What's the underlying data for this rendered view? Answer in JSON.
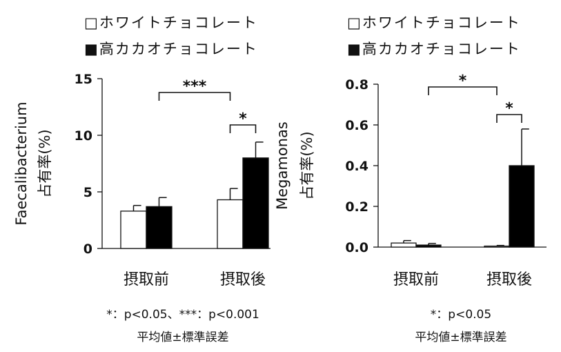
{
  "chart_data": [
    {
      "type": "bar",
      "categories": [
        "摂取前",
        "摂取後"
      ],
      "series": [
        {
          "name": "ホワイトチョコレート",
          "color": "#ffffff",
          "values": [
            3.3,
            4.3
          ],
          "errors": [
            0.5,
            1.0
          ]
        },
        {
          "name": "高カカオチョコレート",
          "color": "#000000",
          "values": [
            3.7,
            8.0
          ],
          "errors": [
            0.8,
            1.4
          ]
        }
      ],
      "ylabel_lines": [
        "Faecalibacterium",
        "占有率(%)"
      ],
      "ylim": [
        0,
        15
      ],
      "yticks": [
        "0",
        "5",
        "10",
        "15"
      ],
      "ytick_values": [
        0,
        5,
        10,
        15
      ],
      "legend": [
        "□ホワイトチョコレート",
        "■高カカオチョコレート"
      ],
      "significance": [
        {
          "label": "***",
          "from": [
            0,
            1
          ],
          "to": [
            1,
            0
          ]
        },
        {
          "label": "*",
          "from": [
            1,
            0
          ],
          "to": [
            1,
            1
          ]
        }
      ],
      "notes": [
        "*：p<0.05、***：p<0.001",
        "平均値±標準誤差"
      ]
    },
    {
      "type": "bar",
      "categories": [
        "摂取前",
        "摂取後"
      ],
      "series": [
        {
          "name": "ホワイトチョコレート",
          "color": "#ffffff",
          "values": [
            0.02,
            0.005
          ],
          "errors": [
            0.012,
            0.003
          ]
        },
        {
          "name": "高カカオチョコレート",
          "color": "#000000",
          "values": [
            0.01,
            0.4
          ],
          "errors": [
            0.008,
            0.18
          ]
        }
      ],
      "ylabel_lines": [
        "Megamonas",
        "占有率(%)"
      ],
      "ylim": [
        0,
        0.8
      ],
      "yticks": [
        "0.0",
        "0.2",
        "0.4",
        "0.6",
        "0.8"
      ],
      "ytick_values": [
        0,
        0.2,
        0.4,
        0.6,
        0.8
      ],
      "legend": [
        "□ホワイトチョコレート",
        "■高カカオチョコレート"
      ],
      "significance": [
        {
          "label": "*",
          "from": [
            0,
            1
          ],
          "to": [
            1,
            0
          ]
        },
        {
          "label": "*",
          "from": [
            1,
            0
          ],
          "to": [
            1,
            1
          ]
        }
      ],
      "notes": [
        "*：p<0.05",
        "平均値±標準誤差"
      ]
    }
  ]
}
